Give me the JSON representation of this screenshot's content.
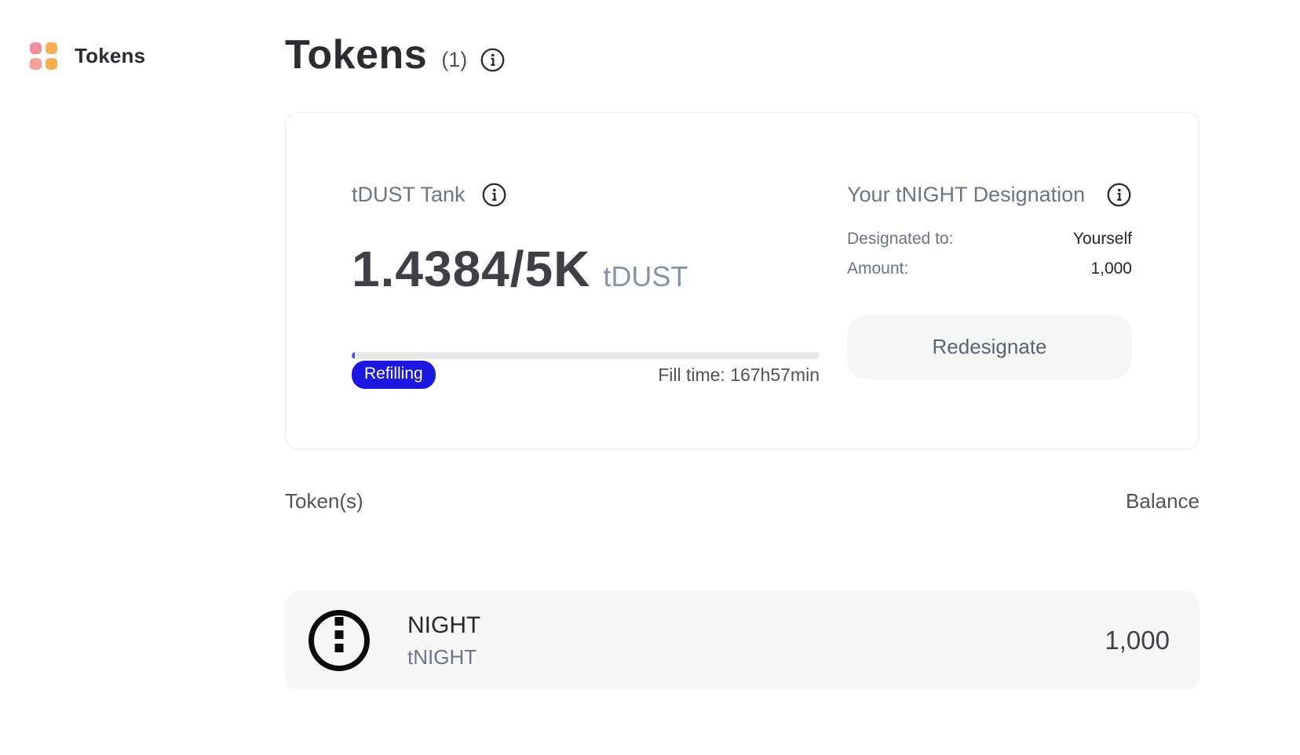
{
  "sidebar": {
    "item": {
      "label": "Tokens",
      "icon": "grid-icon"
    }
  },
  "header": {
    "title": "Tokens",
    "count": "(1)",
    "info_icon": "info-icon"
  },
  "tank_card": {
    "tank": {
      "title": "tDUST Tank",
      "value": "1.4384/5K",
      "unit": "tDUST",
      "progress_percent": 0.03,
      "status_badge": "Refilling",
      "fill_time": "Fill time: 167h57min"
    },
    "designation": {
      "title": "Your tNIGHT Designation",
      "rows": [
        {
          "label": "Designated to:",
          "value": "Yourself"
        },
        {
          "label": "Amount:",
          "value": "1,000"
        }
      ],
      "button_label": "Redesignate"
    }
  },
  "token_list": {
    "columns": {
      "left": "Token(s)",
      "right": "Balance"
    },
    "rows": [
      {
        "name": "NIGHT",
        "symbol": "tNIGHT",
        "balance": "1,000",
        "icon": "night-logo"
      }
    ]
  },
  "colors": {
    "badge_blue": "#1c18e0",
    "grid_pink": "#f0909f",
    "grid_salmon": "#f2a29a",
    "grid_orange": "#f3b052",
    "accent_fill": "#5454e0"
  }
}
